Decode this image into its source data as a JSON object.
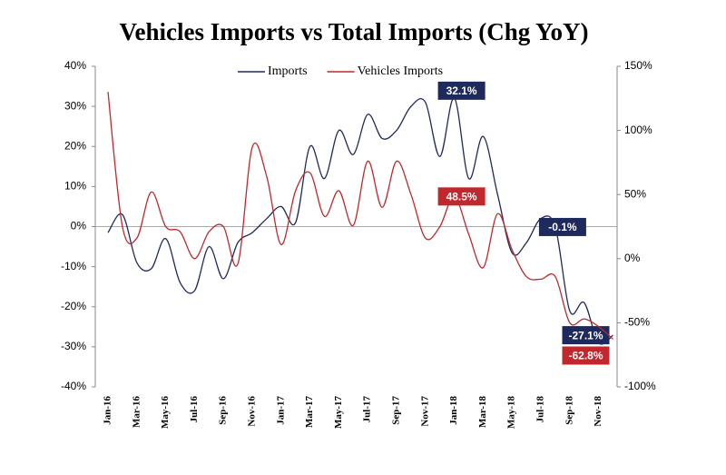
{
  "chart_data": {
    "type": "line",
    "title": "Vehicles Imports vs Total Imports (Chg YoY)",
    "categories": [
      "Jan-16",
      null,
      "Mar-16",
      null,
      "May-16",
      null,
      "Jul-16",
      null,
      "Sep-16",
      null,
      "Nov-16",
      null,
      "Jan-17",
      null,
      "Mar-17",
      null,
      "May-17",
      null,
      "Jul-17",
      null,
      "Sep-17",
      null,
      "Nov-17",
      null,
      "Jan-18",
      null,
      "Mar-18",
      null,
      "May-18",
      null,
      "Jul-18",
      null,
      "Sep-18",
      null,
      "Nov-18",
      null
    ],
    "series": [
      {
        "name": "Imports",
        "color": "#1f2a5c",
        "values": [
          -1.5,
          3,
          -9,
          -10.5,
          -3,
          -14,
          -16,
          -5,
          -13,
          -4,
          -1.5,
          2,
          5,
          1,
          20,
          12,
          24,
          18,
          28,
          22,
          24,
          30,
          31,
          17.5,
          32.1,
          12,
          22.5,
          8,
          -6.5,
          -4,
          2,
          -0.1,
          -21,
          -19,
          -29,
          -27.1
        ],
        "value_labels": [
          null,
          null,
          null,
          null,
          null,
          null,
          null,
          null,
          null,
          null,
          null,
          null,
          null,
          null,
          null,
          null,
          null,
          null,
          null,
          null,
          null,
          null,
          null,
          null,
          "32.1%",
          null,
          null,
          null,
          null,
          null,
          null,
          "-0.1%",
          null,
          null,
          null,
          "-27.1%"
        ]
      },
      {
        "name": "Vehicles Imports",
        "color": "#c0282d",
        "axis": "y2",
        "values": [
          130,
          25,
          16,
          52,
          25,
          21,
          0,
          21,
          25,
          -4,
          87,
          64,
          11,
          53,
          67,
          33,
          53,
          26,
          76,
          40,
          76,
          50,
          16,
          25,
          48.5,
          19,
          -7,
          35,
          7,
          -14,
          -16,
          -14,
          -50,
          -47,
          -53,
          -62.8
        ],
        "value_labels": [
          null,
          null,
          null,
          null,
          null,
          null,
          null,
          null,
          null,
          null,
          null,
          null,
          null,
          null,
          null,
          null,
          null,
          null,
          null,
          null,
          null,
          null,
          null,
          null,
          "48.5%",
          null,
          null,
          null,
          null,
          null,
          null,
          null,
          null,
          null,
          null,
          "-62.8%"
        ]
      }
    ],
    "ylim": [
      -40,
      40
    ],
    "yticks": [
      {
        "value": -40,
        "label": "-40%"
      },
      {
        "value": -30,
        "label": "-30%"
      },
      {
        "value": -20,
        "label": "-20%"
      },
      {
        "value": -10,
        "label": "-10%"
      },
      {
        "value": 0,
        "label": "0%"
      },
      {
        "value": 10,
        "label": "10%"
      },
      {
        "value": 20,
        "label": "20%"
      },
      {
        "value": 30,
        "label": "30%"
      },
      {
        "value": 40,
        "label": "40%"
      }
    ],
    "y2lim": [
      -100,
      150
    ],
    "y2ticks": [
      {
        "value": -100,
        "label": "-100%"
      },
      {
        "value": -50,
        "label": "-50%"
      },
      {
        "value": 0,
        "label": "0%"
      },
      {
        "value": 50,
        "label": "50%"
      },
      {
        "value": 100,
        "label": "100%"
      },
      {
        "value": 150,
        "label": "150%"
      }
    ],
    "legend": "top"
  }
}
